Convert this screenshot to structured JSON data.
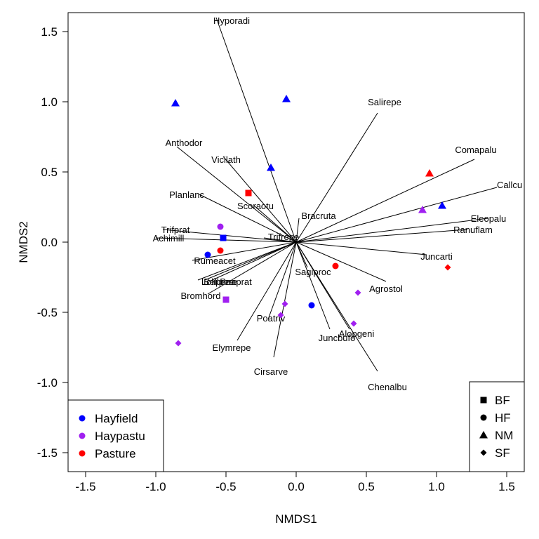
{
  "chart_data": {
    "type": "scatter",
    "xlabel": "NMDS1",
    "ylabel": "NMDS2",
    "xlim": [
      -1.6,
      1.6
    ],
    "ylim": [
      -1.6,
      1.6
    ],
    "x_ticks": [
      -1.5,
      -1.0,
      -0.5,
      0.0,
      0.5,
      1.0,
      1.5
    ],
    "y_ticks": [
      -1.5,
      -1.0,
      -0.5,
      0.0,
      0.5,
      1.0,
      1.5
    ],
    "tick_labels": [
      "-1.5",
      "-1.0",
      "-0.5",
      "0.0",
      "0.5",
      "1.0",
      "1.5"
    ],
    "colors": {
      "Hayfield": "#0000ff",
      "Haypastu": "#a020f0",
      "Pasture": "#ff0000"
    },
    "sites": [
      {
        "x": -0.86,
        "y": 0.99,
        "use": "Hayfield",
        "management": "NM"
      },
      {
        "x": -0.07,
        "y": 1.02,
        "use": "Hayfield",
        "management": "NM"
      },
      {
        "x": -0.18,
        "y": 0.53,
        "use": "Hayfield",
        "management": "NM"
      },
      {
        "x": 1.04,
        "y": 0.26,
        "use": "Hayfield",
        "management": "NM"
      },
      {
        "x": -0.52,
        "y": 0.03,
        "use": "Hayfield",
        "management": "BF"
      },
      {
        "x": -0.63,
        "y": -0.09,
        "use": "Hayfield",
        "management": "HF"
      },
      {
        "x": 0.11,
        "y": -0.45,
        "use": "Hayfield",
        "management": "HF"
      },
      {
        "x": -0.54,
        "y": 0.11,
        "use": "Haypastu",
        "management": "HF"
      },
      {
        "x": -0.5,
        "y": -0.41,
        "use": "Haypastu",
        "management": "BF"
      },
      {
        "x": 0.9,
        "y": 0.23,
        "use": "Haypastu",
        "management": "NM"
      },
      {
        "x": -0.08,
        "y": -0.44,
        "use": "Haypastu",
        "management": "SF"
      },
      {
        "x": -0.11,
        "y": -0.52,
        "use": "Haypastu",
        "management": "SF"
      },
      {
        "x": 0.44,
        "y": -0.36,
        "use": "Haypastu",
        "management": "SF"
      },
      {
        "x": 0.41,
        "y": -0.58,
        "use": "Haypastu",
        "management": "SF"
      },
      {
        "x": -0.84,
        "y": -0.72,
        "use": "Haypastu",
        "management": "SF"
      },
      {
        "x": -0.34,
        "y": 0.35,
        "use": "Pasture",
        "management": "BF"
      },
      {
        "x": 0.95,
        "y": 0.49,
        "use": "Pasture",
        "management": "NM"
      },
      {
        "x": -0.54,
        "y": -0.06,
        "use": "Pasture",
        "management": "HF"
      },
      {
        "x": 0.28,
        "y": -0.17,
        "use": "Pasture",
        "management": "HF"
      },
      {
        "x": 1.08,
        "y": -0.18,
        "use": "Pasture",
        "management": "SF"
      }
    ],
    "species": [
      {
        "name": "Hyporadi",
        "x": -0.57,
        "y": 1.6,
        "lx": -0.46,
        "ly": 1.58
      },
      {
        "name": "Salirepe",
        "x": 0.58,
        "y": 0.92,
        "lx": 0.63,
        "ly": 1.0
      },
      {
        "name": "Anthodor",
        "x": -0.85,
        "y": 0.68,
        "lx": -0.8,
        "ly": 0.71
      },
      {
        "name": "Vicilath",
        "x": -0.52,
        "y": 0.61,
        "lx": -0.5,
        "ly": 0.59
      },
      {
        "name": "Comapalu",
        "x": 1.27,
        "y": 0.59,
        "lx": 1.28,
        "ly": 0.66
      },
      {
        "name": "Callcu",
        "x": 1.43,
        "y": 0.39,
        "lx": 1.52,
        "ly": 0.41
      },
      {
        "name": "Planlanc",
        "x": -0.69,
        "y": 0.34,
        "lx": -0.78,
        "ly": 0.34
      },
      {
        "name": "Scoraotu",
        "x": -0.3,
        "y": 0.26,
        "lx": -0.29,
        "ly": 0.26
      },
      {
        "name": "Bracruta",
        "x": 0.02,
        "y": 0.17,
        "lx": 0.16,
        "ly": 0.19
      },
      {
        "name": "Eleopalu",
        "x": 1.37,
        "y": 0.17,
        "lx": 1.37,
        "ly": 0.17
      },
      {
        "name": "Ranuflam",
        "x": 1.22,
        "y": 0.09,
        "lx": 1.26,
        "ly": 0.09
      },
      {
        "name": "Trifprat",
        "x": -0.95,
        "y": 0.09,
        "lx": -0.86,
        "ly": 0.09
      },
      {
        "name": "Achimill",
        "x": -1.0,
        "y": 0.03,
        "lx": -0.91,
        "ly": 0.03
      },
      {
        "name": "Trifrepe",
        "x": -0.23,
        "y": 0.03,
        "lx": -0.09,
        "ly": 0.04
      },
      {
        "name": "Juncarti",
        "x": 0.93,
        "y": -0.09,
        "lx": 1.0,
        "ly": -0.1
      },
      {
        "name": "Rumeacet",
        "x": -0.74,
        "y": -0.13,
        "lx": -0.58,
        "ly": -0.13
      },
      {
        "name": "Sagiproc",
        "x": 0.08,
        "y": -0.18,
        "lx": 0.12,
        "ly": -0.21
      },
      {
        "name": "Lolipere",
        "x": -0.7,
        "y": -0.27,
        "lx": -0.56,
        "ly": -0.28
      },
      {
        "name": "Bellpere",
        "x": -0.65,
        "y": -0.27,
        "lx": -0.54,
        "ly": -0.28
      },
      {
        "name": "Poaprat",
        "x": -0.62,
        "y": -0.28,
        "lx": -0.43,
        "ly": -0.28
      },
      {
        "name": "Agrostol",
        "x": 0.64,
        "y": -0.28,
        "lx": 0.64,
        "ly": -0.33
      },
      {
        "name": "Bromhord",
        "x": -0.63,
        "y": -0.37,
        "lx": -0.68,
        "ly": -0.38
      },
      {
        "name": "Poatriv",
        "x": -0.2,
        "y": -0.55,
        "lx": -0.18,
        "ly": -0.54
      },
      {
        "name": "Alopgeni",
        "x": 0.38,
        "y": -0.62,
        "lx": 0.43,
        "ly": -0.65
      },
      {
        "name": "Juncbufo",
        "x": 0.24,
        "y": -0.62,
        "lx": 0.29,
        "ly": -0.68
      },
      {
        "name": "Elymrepe",
        "x": -0.42,
        "y": -0.7,
        "lx": -0.46,
        "ly": -0.75
      },
      {
        "name": "Cirsarve",
        "x": -0.16,
        "y": -0.82,
        "lx": -0.18,
        "ly": -0.92
      },
      {
        "name": "Chenalbu",
        "x": 0.58,
        "y": -0.92,
        "lx": 0.65,
        "ly": -1.03
      }
    ],
    "legend_use": [
      {
        "name": "Hayfield",
        "color": "#0000ff"
      },
      {
        "name": "Haypastu",
        "color": "#a020f0"
      },
      {
        "name": "Pasture",
        "color": "#ff0000"
      }
    ],
    "legend_management": [
      {
        "name": "BF",
        "shape": "square"
      },
      {
        "name": "HF",
        "shape": "circle"
      },
      {
        "name": "NM",
        "shape": "triangle"
      },
      {
        "name": "SF",
        "shape": "diamond"
      }
    ],
    "legend_placement": {
      "use": "bottom-left",
      "management": "bottom-right"
    },
    "grid": false
  }
}
